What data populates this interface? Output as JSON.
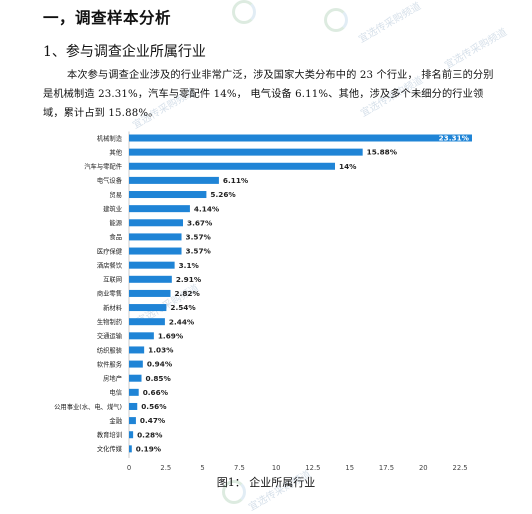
{
  "section_title": "一，调查样本分析",
  "subsection_title": "1、参与调查企业所属行业",
  "paragraph": "本次参与调查企业涉及的行业非常广泛，涉及国家大类分布中的 23 个行业， 排名前三的分别是机械制造 23.31%，汽车与零配件 14%， 电气设备 6.11%、其他，涉及多个未细分的行业领域，累计占到 15.88%。",
  "watermark_text": "宜选传采购频道",
  "caption": "图1： 企业所属行业",
  "colors": {
    "bar": "#1f84d6",
    "axis": "#cccccc",
    "text": "#222222"
  },
  "chart_data": {
    "type": "bar",
    "orientation": "horizontal",
    "categories": [
      "机械制造",
      "其他",
      "汽车与零配件",
      "电气设备",
      "贸易",
      "建筑业",
      "能源",
      "食品",
      "医疗保健",
      "酒店餐饮",
      "互联网",
      "商业零售",
      "新材料",
      "生物制药",
      "交通运输",
      "纺织服装",
      "软件服务",
      "房地产",
      "电信",
      "公用事业(水、电、煤气)",
      "金融",
      "教育培训",
      "文化传媒"
    ],
    "values": [
      23.31,
      15.88,
      14,
      6.11,
      5.26,
      4.14,
      3.67,
      3.57,
      3.57,
      3.1,
      2.91,
      2.82,
      2.54,
      2.44,
      1.69,
      1.03,
      0.94,
      0.85,
      0.66,
      0.56,
      0.47,
      0.28,
      0.19
    ],
    "labels": [
      "23.31%",
      "15.88%",
      "14%",
      "6.11%",
      "5.26%",
      "4.14%",
      "3.67%",
      "3.57%",
      "3.57%",
      "3.1%",
      "2.91%",
      "2.82%",
      "2.54%",
      "2.44%",
      "1.69%",
      "1.03%",
      "0.94%",
      "0.85%",
      "0.66%",
      "0.56%",
      "0.47%",
      "0.28%",
      "0.19%"
    ],
    "xticks": [
      "0",
      "2.5",
      "5",
      "7.5",
      "10",
      "12.5",
      "15",
      "17.5",
      "20",
      "22.5"
    ],
    "xlim": [
      0,
      23.31
    ],
    "grid": false
  }
}
